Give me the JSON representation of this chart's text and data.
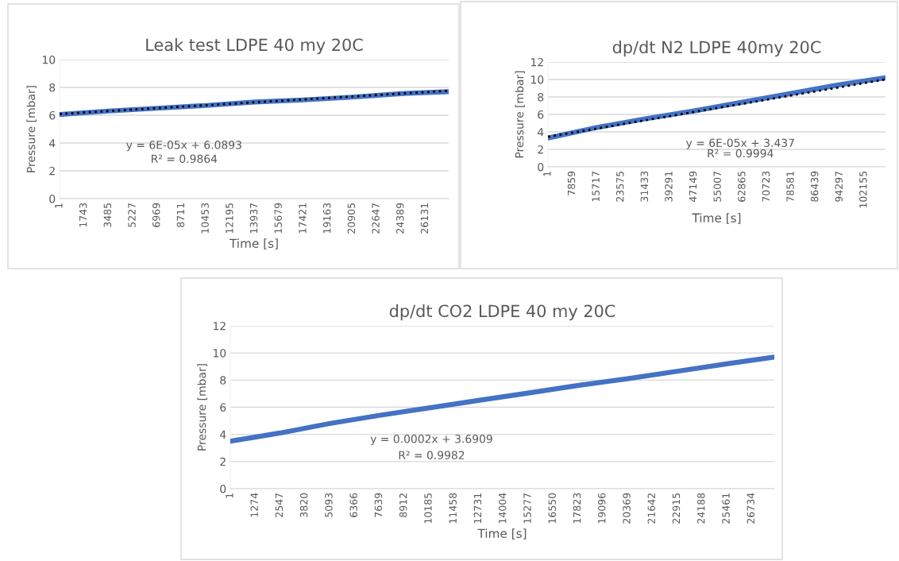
{
  "chart_data": [
    {
      "type": "line",
      "title": "Leak test LDPE 40 my 20C",
      "xlabel": "Time [s]",
      "ylabel": "Pressure [mbar]",
      "series": [
        {
          "color": "#4472c4",
          "x": [
            1,
            3485,
            6969,
            10453,
            13937,
            17421,
            20905,
            24389,
            27800
          ],
          "values": [
            6.05,
            6.3,
            6.5,
            6.7,
            6.95,
            7.1,
            7.3,
            7.55,
            7.7
          ]
        },
        {
          "type": "line",
          "color": "#000000",
          "line_style": "dotted",
          "x": [
            1,
            27800
          ],
          "values": [
            6.09,
            7.76
          ]
        }
      ],
      "xlim": [
        1,
        27800
      ],
      "xticks": [
        1,
        1743,
        3485,
        5227,
        6969,
        8711,
        10453,
        12195,
        13937,
        15679,
        17421,
        19163,
        20905,
        22647,
        24389,
        26131
      ],
      "ylim": [
        0,
        10
      ],
      "yticks": [
        0,
        2,
        4,
        6,
        8,
        10
      ],
      "grid": "y",
      "line_style": "solid",
      "annotations": [
        "y = 6E-05x + 6.0893",
        "R² = 0.9864"
      ]
    },
    {
      "type": "line",
      "title": "dp/dt N2 LDPE 40my 20C",
      "xlabel": "Time [s]",
      "ylabel": "Pressure [mbar]",
      "series": [
        {
          "color": "#4472c4",
          "x": [
            1,
            15717,
            31433,
            47149,
            62865,
            78581,
            94297,
            109100
          ],
          "values": [
            3.3,
            4.5,
            5.5,
            6.4,
            7.4,
            8.4,
            9.4,
            10.2
          ]
        },
        {
          "type": "line",
          "color": "#000000",
          "line_style": "dotted",
          "x": [
            1,
            109100
          ],
          "values": [
            3.44,
            10.0
          ]
        }
      ],
      "xlim": [
        1,
        109100
      ],
      "xticks": [
        1,
        7859,
        15717,
        23575,
        31433,
        39291,
        47149,
        55007,
        62865,
        70723,
        78581,
        86439,
        94297,
        102155
      ],
      "ylim": [
        0,
        12
      ],
      "yticks": [
        0,
        2,
        4,
        6,
        8,
        10,
        12
      ],
      "grid": "y",
      "line_style": "solid",
      "annotations": [
        "y = 6E-05x + 3.437",
        "R² = 0.9994"
      ]
    },
    {
      "type": "line",
      "title": "dp/dt CO2 LDPE 40 my 20C",
      "xlabel": "Time [s]",
      "ylabel": "Pressure [mbar]",
      "series": [
        {
          "color": "#4472c4",
          "x": [
            1,
            1274,
            2547,
            5093,
            7639,
            10185,
            12731,
            15277,
            17823,
            20369,
            22915,
            25461,
            27900
          ],
          "values": [
            3.5,
            3.8,
            4.1,
            4.8,
            5.4,
            5.95,
            6.5,
            7.05,
            7.6,
            8.1,
            8.65,
            9.2,
            9.7
          ]
        }
      ],
      "xlim": [
        1,
        27900
      ],
      "xticks": [
        1,
        1274,
        2547,
        3820,
        5093,
        6366,
        7639,
        8912,
        10185,
        11458,
        12731,
        14004,
        15277,
        16550,
        17823,
        19096,
        20369,
        21642,
        22915,
        24188,
        25461,
        26734
      ],
      "ylim": [
        0,
        12
      ],
      "yticks": [
        0,
        2,
        4,
        6,
        8,
        10,
        12
      ],
      "grid": "y",
      "line_style": "solid",
      "annotations": [
        "y = 0.0002x + 3.6909",
        "R² = 0.9982"
      ]
    }
  ]
}
